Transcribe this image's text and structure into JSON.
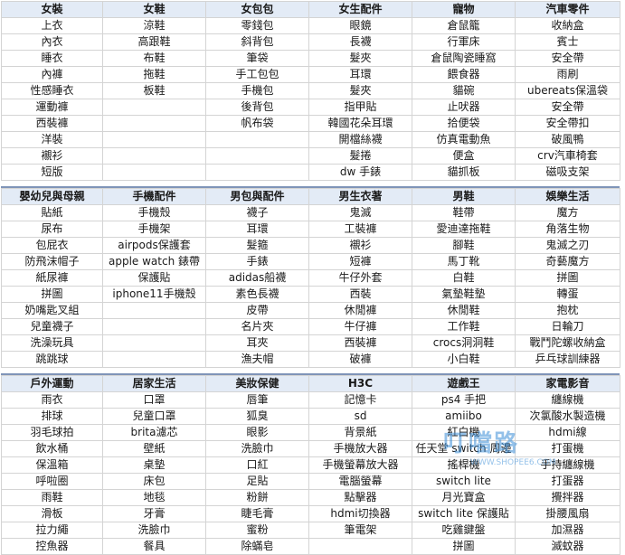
{
  "blocks": [
    {
      "headers": [
        "女裝",
        "女鞋",
        "女包包",
        "女生配件",
        "寵物",
        "汽車零件"
      ],
      "rows": [
        [
          "上衣",
          "涼鞋",
          "零錢包",
          "眼鏡",
          "倉鼠籠",
          "收納盒"
        ],
        [
          "內衣",
          "高跟鞋",
          "斜背包",
          "長襪",
          "行軍床",
          "賓士"
        ],
        [
          "睡衣",
          "布鞋",
          "筆袋",
          "髮夾",
          "倉鼠陶瓷睡窩",
          "安全帶"
        ],
        [
          "內褲",
          "拖鞋",
          "手工包包",
          "耳環",
          "餵食器",
          "雨刷"
        ],
        [
          "性感睡衣",
          "板鞋",
          "手機包",
          "髮夾",
          "貓碗",
          "ubereats保溫袋"
        ],
        [
          "運動褲",
          "",
          "後背包",
          "指甲貼",
          "止吠器",
          "安全帶"
        ],
        [
          "西裝褲",
          "",
          "帆布袋",
          "韓國花朵耳環",
          "拾便袋",
          "安全帶扣"
        ],
        [
          "洋裝",
          "",
          "",
          "開檔絲襪",
          "仿真電動魚",
          "破風鴨"
        ],
        [
          "襯衫",
          "",
          "",
          "髮捲",
          "便盒",
          "crv汽車椅套"
        ],
        [
          "短版",
          "",
          "",
          "dw 手錶",
          "貓抓板",
          "磁吸支架"
        ]
      ]
    },
    {
      "headers": [
        "嬰幼兒與母親",
        "手機配件",
        "男包與配件",
        "男生衣著",
        "男鞋",
        "娛樂生活"
      ],
      "rows": [
        [
          "貼紙",
          "手機殼",
          "襪子",
          "鬼滅",
          "鞋帶",
          "魔方"
        ],
        [
          "尿布",
          "手機架",
          "耳環",
          "工裝褲",
          "愛迪達拖鞋",
          "角落生物"
        ],
        [
          "包屁衣",
          "airpods保護套",
          "髮箍",
          "襯衫",
          "腳鞋",
          "鬼滅之刃"
        ],
        [
          "防飛沫帽子",
          "apple watch 錶帶",
          "手錶",
          "短褲",
          "馬丁靴",
          "奇藝魔方"
        ],
        [
          "紙尿褲",
          "保護貼",
          "adidas船襪",
          "牛仔外套",
          "白鞋",
          "拼圖"
        ],
        [
          "拼圖",
          "iphone11手機殼",
          "素色長襪",
          "西裝",
          "氣墊鞋墊",
          "轉蛋"
        ],
        [
          "奶嘴匙叉組",
          "",
          "皮帶",
          "休閒褲",
          "休閒鞋",
          "抱枕"
        ],
        [
          "兒童襪子",
          "",
          "名片夾",
          "牛仔褲",
          "工作鞋",
          "日輪刀"
        ],
        [
          "洗澡玩具",
          "",
          "耳夾",
          "西裝褲",
          "crocs洞洞鞋",
          "戰鬥陀螺收納盒"
        ],
        [
          "跳跳球",
          "",
          "漁夫帽",
          "破褲",
          "小白鞋",
          "乒乓球訓練器"
        ]
      ]
    },
    {
      "headers": [
        "戶外運動",
        "居家生活",
        "美妝保健",
        "H3C",
        "遊戲王",
        "家電影音"
      ],
      "rows": [
        [
          "雨衣",
          "口罩",
          "唇筆",
          "記憶卡",
          "ps4 手把",
          "纏線機"
        ],
        [
          "排球",
          "兒童口罩",
          "狐臭",
          "sd",
          "amiibo",
          "次氯酸水製造機"
        ],
        [
          "羽毛球拍",
          "brita濾芯",
          "眼影",
          "背景紙",
          "紅白機",
          "hdmi線"
        ],
        [
          "飲水桶",
          "壁紙",
          "洗臉巾",
          "手機放大器",
          "任天堂 switch 周邊",
          "打蛋機"
        ],
        [
          "保溫箱",
          "桌墊",
          "口紅",
          "手機螢幕放大器",
          "搖桿機",
          "手持纏線機"
        ],
        [
          "呼啦圈",
          "床包",
          "足貼",
          "電腦螢幕",
          "switch lite",
          "打蛋器"
        ],
        [
          "雨鞋",
          "地毯",
          "粉餅",
          "點擊器",
          "月光寶盒",
          "攪拌器"
        ],
        [
          "滑板",
          "牙膏",
          "睫毛膏",
          "hdmi切換器",
          "switch lite 保護貼",
          "掛腰風扇"
        ],
        [
          "拉力繩",
          "洗臉巾",
          "蜜粉",
          "筆電架",
          "吃雞鍵盤",
          "加濕器"
        ],
        [
          "控魚器",
          "餐具",
          "除蟎皂",
          "",
          "拼圖",
          "滅蚊器"
        ]
      ]
    }
  ],
  "watermark": {
    "title": "叮噹路",
    "url": "WWW.SHOPEE6.COM"
  }
}
